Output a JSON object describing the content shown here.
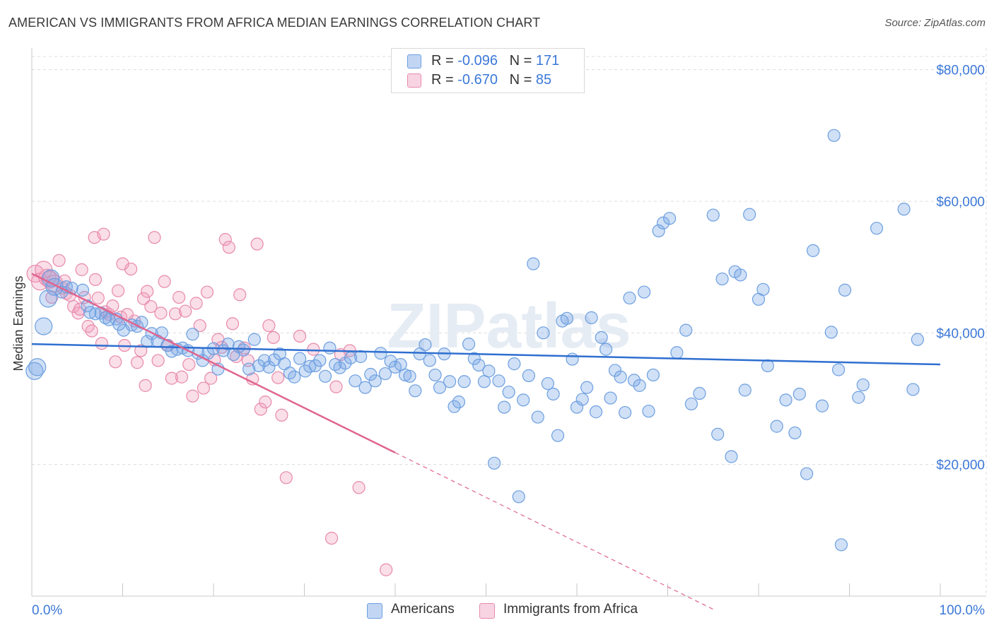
{
  "title": "AMERICAN VS IMMIGRANTS FROM AFRICA MEDIAN EARNINGS CORRELATION CHART",
  "source": "Source: ZipAtlas.com",
  "watermark": "ZIPatlas",
  "colors": {
    "blue": "#6d9fe0",
    "blue_fill": "rgba(120,165,230,0.35)",
    "blue_line": "#2f6fd0",
    "pink": "#e889ab",
    "pink_fill": "rgba(240,160,190,0.35)",
    "pink_line": "#e0648f",
    "axis_label": "#3b78d8",
    "grid": "#dcdcdc"
  },
  "legend": {
    "rows": [
      {
        "r_label": "R = ",
        "r_value": "-0.096",
        "n_label": "N = ",
        "n_value": "171"
      },
      {
        "r_label": "R = ",
        "r_value": "-0.670",
        "n_label": "N = ",
        "n_value": "85"
      }
    ]
  },
  "bottom_legend": {
    "americans": "Americans",
    "africa": "Immigrants from Africa"
  },
  "chart_data": {
    "type": "scatter",
    "ylabel": "Median Earnings",
    "xlim": [
      0,
      100
    ],
    "ylim": [
      0,
      82000
    ],
    "x_tick_labels": [
      "0.0%",
      "100.0%"
    ],
    "y_ticks": [
      20000,
      40000,
      60000,
      80000
    ],
    "y_tick_labels": [
      "$20,000",
      "$40,000",
      "$60,000",
      "$80,000"
    ],
    "grid": true,
    "series": [
      {
        "name": "Americans",
        "color": "blue",
        "trend": {
          "x": [
            0,
            100
          ],
          "y": [
            38300,
            35200
          ],
          "solid_to": 100
        },
        "points": [
          [
            0.3,
            34200
          ],
          [
            0.6,
            34800
          ],
          [
            1.3,
            41000
          ],
          [
            1.8,
            45200
          ],
          [
            2.1,
            48300
          ],
          [
            2.5,
            47000
          ],
          [
            3.3,
            46200
          ],
          [
            3.8,
            47000
          ],
          [
            4.4,
            46800
          ],
          [
            5.6,
            46500
          ],
          [
            6.1,
            44100
          ],
          [
            6.4,
            43100
          ],
          [
            7.0,
            42900
          ],
          [
            7.6,
            43000
          ],
          [
            8.1,
            42300
          ],
          [
            8.5,
            42000
          ],
          [
            9.3,
            42100
          ],
          [
            9.6,
            41300
          ],
          [
            10.1,
            40400
          ],
          [
            11.0,
            41200
          ],
          [
            11.6,
            41000
          ],
          [
            12.1,
            41600
          ],
          [
            12.7,
            38700
          ],
          [
            13.2,
            39900
          ],
          [
            13.8,
            38800
          ],
          [
            14.3,
            40000
          ],
          [
            14.9,
            38100
          ],
          [
            15.4,
            37200
          ],
          [
            16.0,
            37500
          ],
          [
            16.6,
            37700
          ],
          [
            17.2,
            37300
          ],
          [
            17.7,
            39800
          ],
          [
            18.3,
            36900
          ],
          [
            18.8,
            35800
          ],
          [
            19.4,
            36900
          ],
          [
            20.0,
            37600
          ],
          [
            20.5,
            34500
          ],
          [
            21.1,
            37300
          ],
          [
            21.6,
            38300
          ],
          [
            22.2,
            36700
          ],
          [
            22.8,
            37900
          ],
          [
            23.3,
            37400
          ],
          [
            23.9,
            34500
          ],
          [
            24.5,
            39000
          ],
          [
            25.0,
            35000
          ],
          [
            25.6,
            35800
          ],
          [
            26.1,
            34800
          ],
          [
            26.7,
            35900
          ],
          [
            27.3,
            36800
          ],
          [
            27.8,
            35300
          ],
          [
            28.4,
            33900
          ],
          [
            28.9,
            33300
          ],
          [
            29.5,
            36100
          ],
          [
            30.1,
            34200
          ],
          [
            30.6,
            34900
          ],
          [
            31.2,
            35000
          ],
          [
            31.7,
            35800
          ],
          [
            32.3,
            33400
          ],
          [
            32.8,
            37700
          ],
          [
            33.4,
            35200
          ],
          [
            33.9,
            34700
          ],
          [
            34.5,
            35400
          ],
          [
            35.1,
            36200
          ],
          [
            35.6,
            32700
          ],
          [
            36.2,
            36400
          ],
          [
            36.7,
            31700
          ],
          [
            37.3,
            33700
          ],
          [
            37.8,
            32700
          ],
          [
            38.4,
            36900
          ],
          [
            38.9,
            33800
          ],
          [
            39.5,
            35700
          ],
          [
            40.0,
            34800
          ],
          [
            40.6,
            35200
          ],
          [
            41.1,
            33600
          ],
          [
            41.6,
            33400
          ],
          [
            42.2,
            31200
          ],
          [
            42.7,
            36800
          ],
          [
            43.3,
            38200
          ],
          [
            43.8,
            35800
          ],
          [
            44.4,
            33600
          ],
          [
            44.9,
            31700
          ],
          [
            45.4,
            36800
          ],
          [
            46.0,
            32600
          ],
          [
            46.5,
            28800
          ],
          [
            47.0,
            29500
          ],
          [
            47.6,
            32600
          ],
          [
            48.1,
            38300
          ],
          [
            48.7,
            36100
          ],
          [
            49.2,
            35100
          ],
          [
            49.8,
            32600
          ],
          [
            50.3,
            34200
          ],
          [
            50.9,
            20200
          ],
          [
            51.4,
            32700
          ],
          [
            52.0,
            28700
          ],
          [
            52.5,
            31000
          ],
          [
            53.1,
            35300
          ],
          [
            53.6,
            15100
          ],
          [
            54.1,
            29800
          ],
          [
            54.7,
            33500
          ],
          [
            55.2,
            50500
          ],
          [
            55.7,
            27200
          ],
          [
            56.3,
            40000
          ],
          [
            56.8,
            32300
          ],
          [
            57.4,
            30700
          ],
          [
            57.9,
            24400
          ],
          [
            58.4,
            41800
          ],
          [
            58.9,
            42200
          ],
          [
            59.5,
            36000
          ],
          [
            60.0,
            28700
          ],
          [
            60.6,
            29900
          ],
          [
            61.1,
            31700
          ],
          [
            61.6,
            42300
          ],
          [
            62.1,
            28000
          ],
          [
            62.7,
            39300
          ],
          [
            63.2,
            37500
          ],
          [
            63.7,
            30100
          ],
          [
            64.2,
            34300
          ],
          [
            64.8,
            33300
          ],
          [
            65.3,
            27900
          ],
          [
            65.8,
            45300
          ],
          [
            66.3,
            32800
          ],
          [
            66.9,
            32000
          ],
          [
            67.4,
            46200
          ],
          [
            67.9,
            28100
          ],
          [
            68.4,
            33600
          ],
          [
            69.0,
            55500
          ],
          [
            69.5,
            56700
          ],
          [
            70.2,
            57400
          ],
          [
            71.0,
            37000
          ],
          [
            72.0,
            40400
          ],
          [
            72.6,
            29200
          ],
          [
            73.5,
            30800
          ],
          [
            75.0,
            57900
          ],
          [
            75.5,
            24600
          ],
          [
            76.0,
            48200
          ],
          [
            77.0,
            21200
          ],
          [
            77.4,
            49300
          ],
          [
            78.0,
            48800
          ],
          [
            78.5,
            31300
          ],
          [
            79.0,
            58000
          ],
          [
            80.0,
            45100
          ],
          [
            80.5,
            46600
          ],
          [
            81.0,
            35000
          ],
          [
            82.0,
            25800
          ],
          [
            83.0,
            29800
          ],
          [
            84.0,
            24800
          ],
          [
            84.5,
            30700
          ],
          [
            85.3,
            18600
          ],
          [
            86.0,
            52500
          ],
          [
            87.0,
            28900
          ],
          [
            88.0,
            40100
          ],
          [
            88.3,
            70000
          ],
          [
            88.8,
            34400
          ],
          [
            89.1,
            7800
          ],
          [
            89.5,
            46500
          ],
          [
            91.0,
            30200
          ],
          [
            91.5,
            32100
          ],
          [
            93.0,
            55900
          ],
          [
            96.0,
            58800
          ],
          [
            97.0,
            31400
          ],
          [
            97.5,
            39000
          ]
        ]
      },
      {
        "name": "Immigrants from Africa",
        "color": "pink",
        "trend": {
          "x": [
            0,
            75
          ],
          "y": [
            49000,
            -2000
          ],
          "solid_to": 40
        },
        "points": [
          [
            0.4,
            49000
          ],
          [
            0.9,
            47800
          ],
          [
            1.3,
            49600
          ],
          [
            1.7,
            48400
          ],
          [
            2.0,
            48100
          ],
          [
            2.5,
            47500
          ],
          [
            3.0,
            51000
          ],
          [
            3.4,
            46800
          ],
          [
            3.8,
            46000
          ],
          [
            4.2,
            45700
          ],
          [
            4.6,
            44000
          ],
          [
            5.1,
            43000
          ],
          [
            5.5,
            49600
          ],
          [
            5.8,
            45400
          ],
          [
            6.2,
            41000
          ],
          [
            6.6,
            40300
          ],
          [
            7.0,
            48100
          ],
          [
            7.3,
            45300
          ],
          [
            7.7,
            38400
          ],
          [
            8.1,
            43200
          ],
          [
            8.5,
            42800
          ],
          [
            8.9,
            44100
          ],
          [
            9.2,
            35600
          ],
          [
            9.5,
            46400
          ],
          [
            9.8,
            42400
          ],
          [
            10.2,
            38100
          ],
          [
            10.5,
            42800
          ],
          [
            10.9,
            49700
          ],
          [
            11.3,
            41800
          ],
          [
            11.6,
            35500
          ],
          [
            12.0,
            37300
          ],
          [
            12.3,
            45200
          ],
          [
            12.7,
            46300
          ],
          [
            13.1,
            44000
          ],
          [
            13.5,
            54500
          ],
          [
            13.9,
            35800
          ],
          [
            14.2,
            43000
          ],
          [
            14.6,
            47800
          ],
          [
            15.0,
            38100
          ],
          [
            15.4,
            33100
          ],
          [
            15.8,
            42900
          ],
          [
            16.2,
            45400
          ],
          [
            16.5,
            33300
          ],
          [
            16.9,
            43300
          ],
          [
            17.3,
            35200
          ],
          [
            17.7,
            30400
          ],
          [
            18.1,
            44500
          ],
          [
            18.5,
            41100
          ],
          [
            18.9,
            31600
          ],
          [
            19.3,
            46200
          ],
          [
            19.7,
            33100
          ],
          [
            20.1,
            35900
          ],
          [
            20.5,
            39000
          ],
          [
            20.9,
            37800
          ],
          [
            21.3,
            54200
          ],
          [
            21.7,
            53000
          ],
          [
            22.1,
            41400
          ],
          [
            22.5,
            36400
          ],
          [
            22.9,
            45800
          ],
          [
            23.4,
            37700
          ],
          [
            23.8,
            35800
          ],
          [
            24.3,
            33000
          ],
          [
            24.8,
            53500
          ],
          [
            25.2,
            28400
          ],
          [
            25.7,
            29500
          ],
          [
            26.1,
            41100
          ],
          [
            26.6,
            39300
          ],
          [
            27.1,
            33200
          ],
          [
            27.5,
            27500
          ],
          [
            28.0,
            18000
          ],
          [
            29.5,
            39500
          ],
          [
            31.0,
            37500
          ],
          [
            33.0,
            8800
          ],
          [
            33.5,
            31800
          ],
          [
            34.0,
            36700
          ],
          [
            35.0,
            37300
          ],
          [
            36.0,
            16500
          ],
          [
            39.0,
            4000
          ],
          [
            6.9,
            54500
          ],
          [
            7.9,
            55000
          ],
          [
            10.0,
            50500
          ],
          [
            2.2,
            45400
          ],
          [
            3.6,
            47900
          ],
          [
            5.3,
            43600
          ],
          [
            12.5,
            32000
          ]
        ]
      }
    ]
  }
}
